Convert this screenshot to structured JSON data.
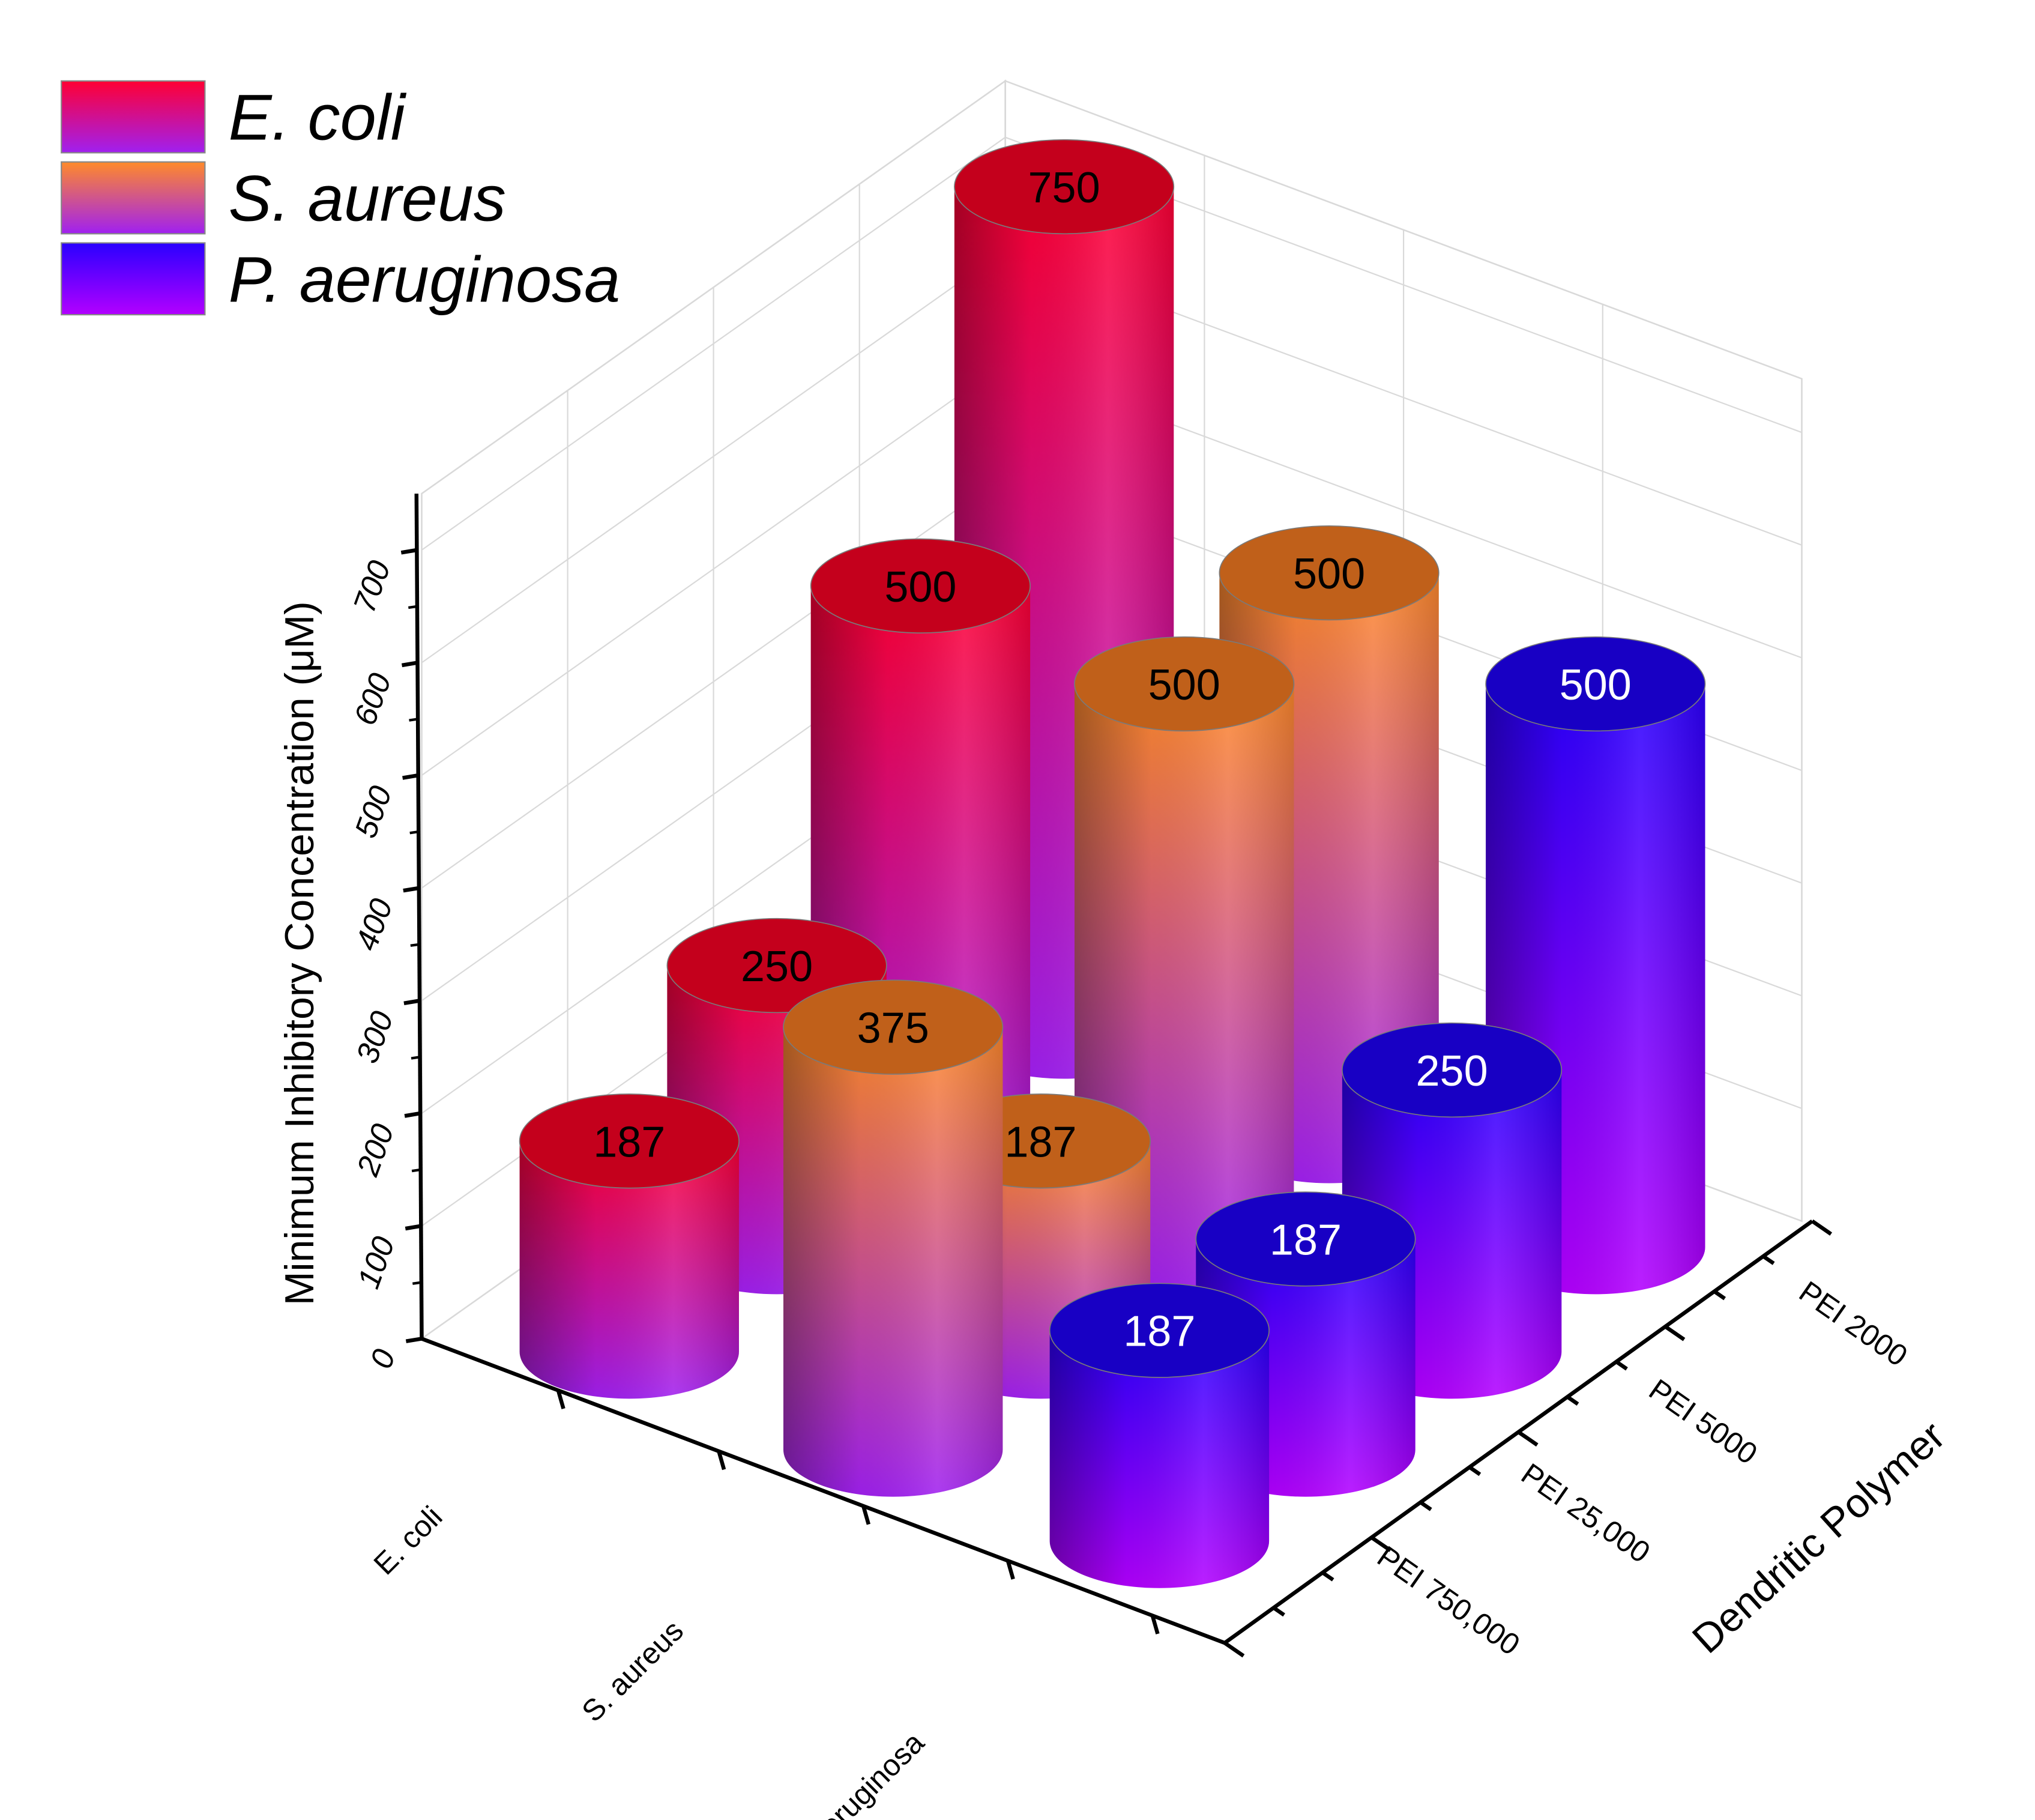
{
  "chart_data": {
    "type": "bar",
    "style": "3d-cylinder",
    "ylabel": "Minimum Inhibitory Concentration (μM)",
    "xlabel": "",
    "zlabel": "Dendritic Polymer",
    "ylim": [
      0,
      750
    ],
    "yticks": [
      "0",
      "100",
      "200",
      "300",
      "400",
      "500",
      "600",
      "700"
    ],
    "bacteria": [
      "E. coli",
      "S. aureus",
      "P. aeruginosa"
    ],
    "polymers": [
      "PEI 750,000",
      "PEI 25,000",
      "PEI 5000",
      "PEI 2000"
    ],
    "legend": {
      "position": "top-left",
      "entries": [
        "E. coli",
        "S. aureus",
        "P. aeruginosa"
      ]
    },
    "series": [
      {
        "name": "E. coli",
        "color_top": "#ff0033",
        "color_bottom": "#a020f0",
        "cap_color": "#c4001c",
        "label_color": "#000000",
        "values": [
          187,
          250,
          500,
          750
        ]
      },
      {
        "name": "S. aureus",
        "color_top": "#ff8a2a",
        "color_bottom": "#a020f0",
        "cap_color": "#c0601a",
        "label_color": "#000000",
        "values": [
          375,
          187,
          500,
          500
        ]
      },
      {
        "name": "P. aeruginosa",
        "color_top": "#2a00ff",
        "color_bottom": "#b300ff",
        "cap_color": "#1800c4",
        "label_color": "#ffffff",
        "values": [
          187,
          187,
          250,
          500
        ]
      }
    ]
  }
}
